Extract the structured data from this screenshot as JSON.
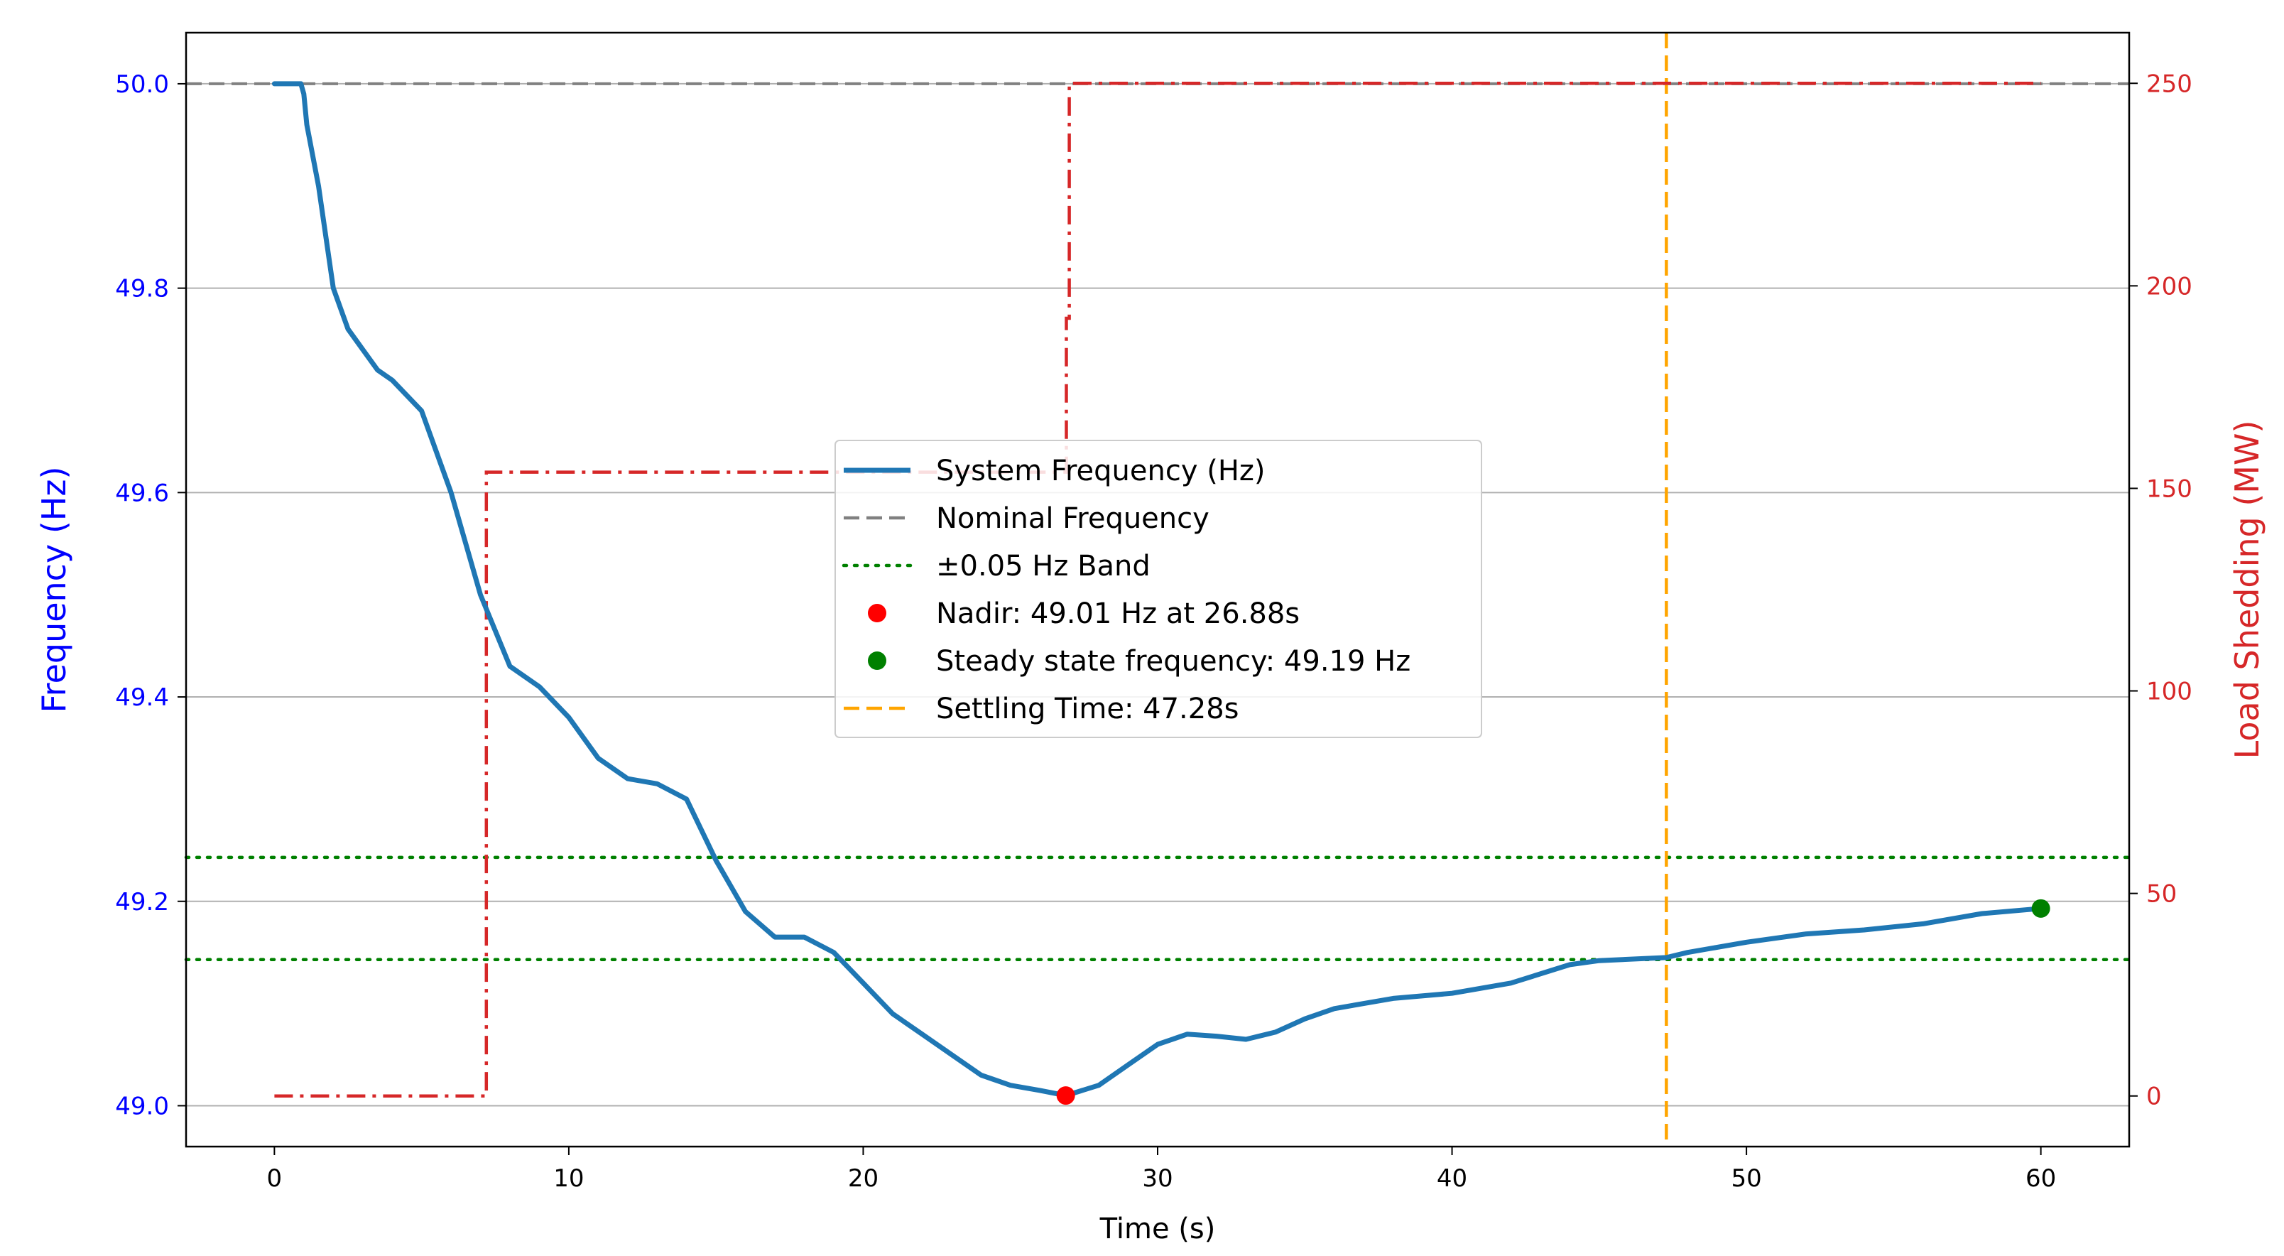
{
  "chart_data": {
    "type": "line",
    "xlabel": "Time (s)",
    "ylabel_left": "Frequency (Hz)",
    "ylabel_right": "Load Shedding (MW)",
    "xlim": [
      -3,
      63
    ],
    "ylim_left": [
      48.96,
      50.05
    ],
    "ylim_right": [
      -12.5,
      262.5
    ],
    "x_ticks": [
      0,
      10,
      20,
      30,
      40,
      50,
      60
    ],
    "y_ticks_left": [
      49.0,
      49.2,
      49.4,
      49.6,
      49.8,
      50.0
    ],
    "y_ticks_right": [
      0,
      50,
      100,
      150,
      200,
      250
    ],
    "grid": "horizontal",
    "colors": {
      "frequency": "#1f77b4",
      "nominal": "#808080",
      "band": "#008000",
      "load": "#d62728",
      "settling": "#ffa500",
      "nadir": "#ff0000",
      "steady": "#008000",
      "left_axis": "#0000ff",
      "right_axis": "#d62728"
    },
    "series": [
      {
        "name": "System Frequency (Hz)",
        "axis": "left",
        "x": [
          0,
          0.9,
          1.0,
          1.1,
          1.5,
          2.0,
          2.5,
          3.0,
          3.5,
          4.0,
          5.0,
          6.0,
          7.0,
          8.0,
          9.0,
          10.0,
          11.0,
          12.0,
          13.0,
          14.0,
          15.0,
          16.0,
          17.0,
          18.0,
          19.0,
          20.0,
          21.0,
          22.0,
          23.0,
          24.0,
          25.0,
          26.0,
          26.88,
          28.0,
          29.0,
          30.0,
          31.0,
          32.0,
          33.0,
          34.0,
          35.0,
          36.0,
          37.0,
          38.0,
          40.0,
          42.0,
          44.0,
          45.0,
          47.28,
          48.0,
          50.0,
          52.0,
          54.0,
          56.0,
          58.0,
          60.0
        ],
        "y": [
          50.0,
          50.0,
          49.99,
          49.96,
          49.9,
          49.8,
          49.76,
          49.74,
          49.72,
          49.71,
          49.68,
          49.6,
          49.5,
          49.43,
          49.41,
          49.38,
          49.34,
          49.32,
          49.315,
          49.3,
          49.24,
          49.19,
          49.165,
          49.165,
          49.15,
          49.12,
          49.09,
          49.07,
          49.05,
          49.03,
          49.02,
          49.015,
          49.01,
          49.02,
          49.04,
          49.06,
          49.07,
          49.068,
          49.065,
          49.072,
          49.085,
          49.095,
          49.1,
          49.105,
          49.11,
          49.12,
          49.138,
          49.142,
          49.145,
          49.15,
          49.16,
          49.168,
          49.172,
          49.178,
          49.188,
          49.193
        ]
      },
      {
        "name": "Load Shedding (MW)",
        "axis": "right",
        "x": [
          0,
          7.2,
          7.2,
          26.9,
          26.9,
          27.0,
          27.0,
          60
        ],
        "y": [
          0,
          0,
          154,
          154,
          192,
          192,
          250,
          250
        ]
      }
    ],
    "reference_lines": {
      "nominal_frequency": 50.0,
      "band": [
        49.143,
        49.243
      ],
      "settling_time": 47.28
    },
    "points": {
      "nadir": {
        "x": 26.88,
        "y": 49.01
      },
      "steady": {
        "x": 60,
        "y": 49.193
      }
    },
    "legend": {
      "position": "center",
      "entries": [
        {
          "label": "System Frequency (Hz)",
          "style": "solid-line",
          "color_key": "frequency"
        },
        {
          "label": "Nominal Frequency",
          "style": "dashed-line",
          "color_key": "nominal"
        },
        {
          "label": "±0.05 Hz Band",
          "style": "dotted-line",
          "color_key": "band"
        },
        {
          "label": "Nadir: 49.01 Hz at 26.88s",
          "style": "dot",
          "color_key": "nadir"
        },
        {
          "label": "Steady state frequency: 49.19 Hz",
          "style": "dot",
          "color_key": "steady"
        },
        {
          "label": "Settling Time: 47.28s",
          "style": "dashed-line",
          "color_key": "settling"
        }
      ]
    }
  }
}
